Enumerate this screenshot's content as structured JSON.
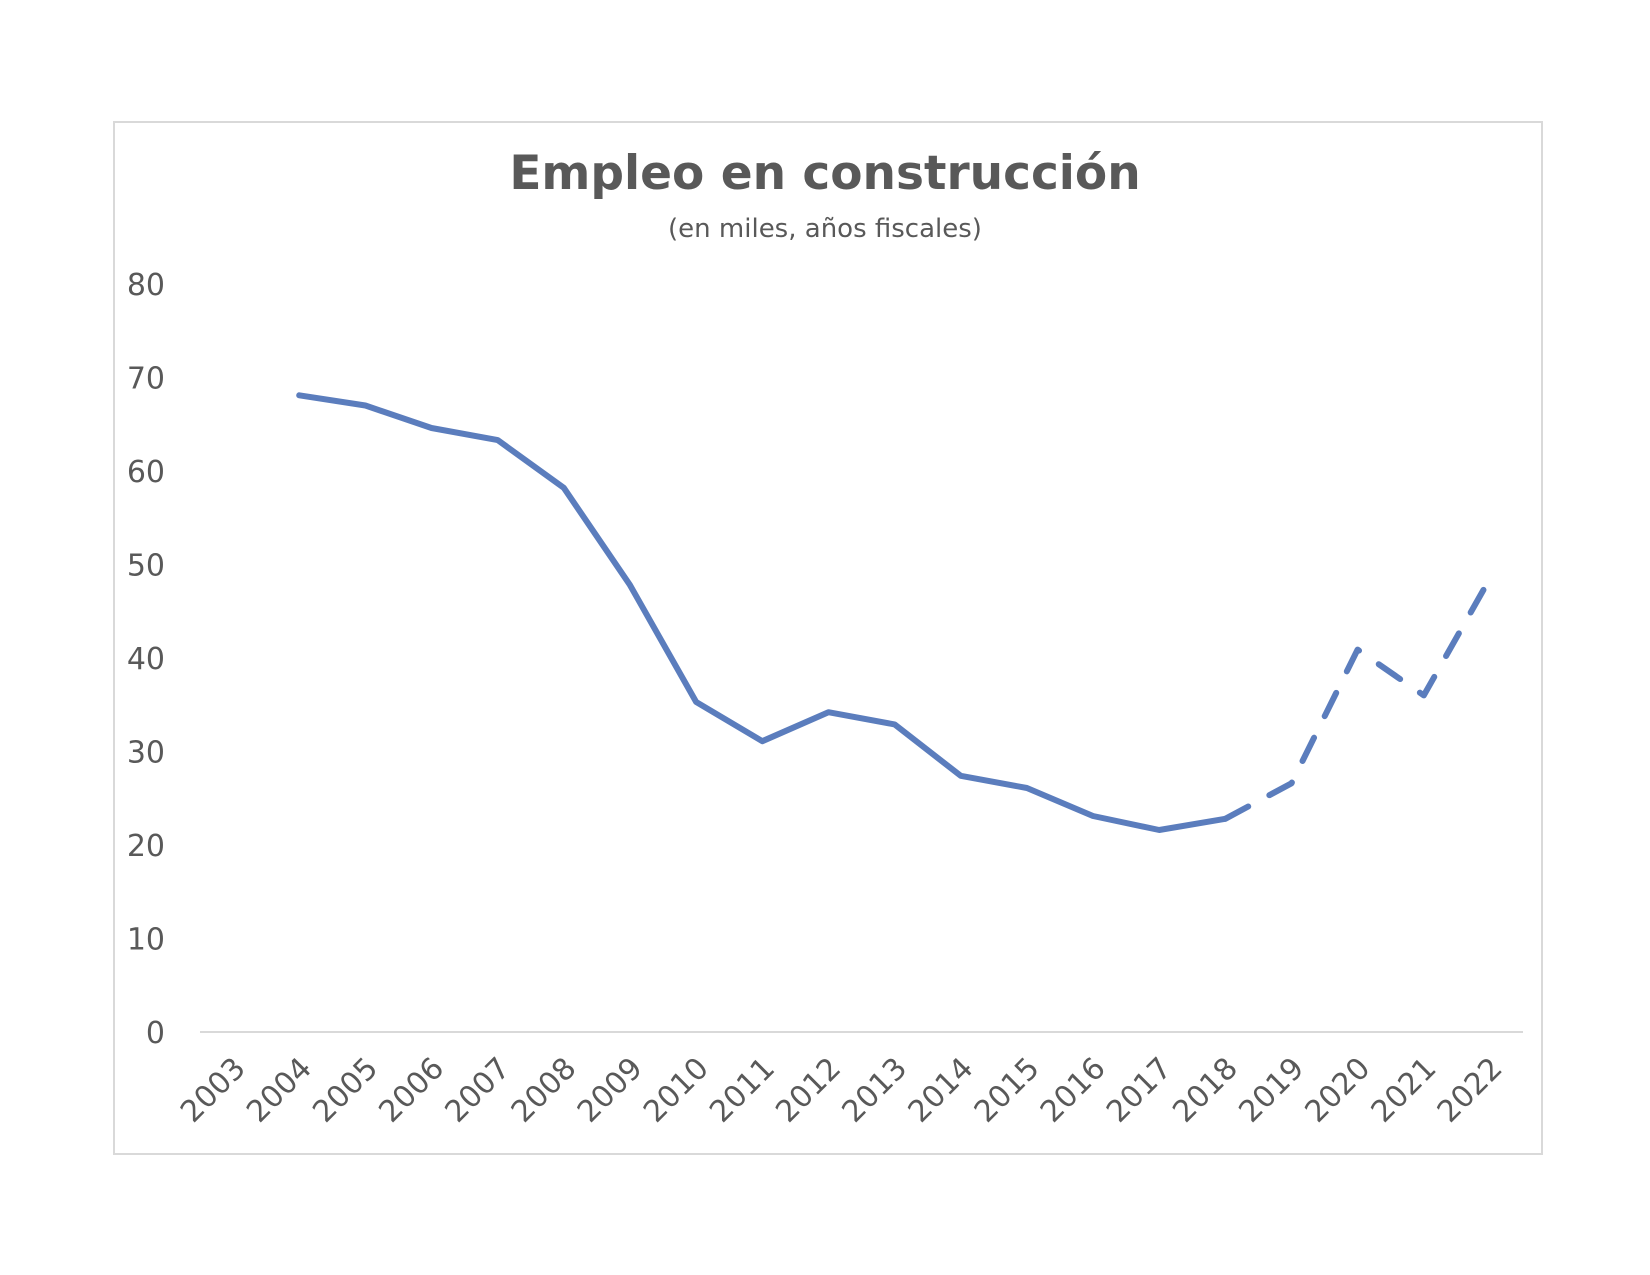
{
  "chart_data": {
    "type": "line",
    "title": "Empleo en construcción",
    "subtitle": "(en miles, años fiscales)",
    "xlabel": "",
    "ylabel": "",
    "ylim": [
      0,
      80
    ],
    "yticks": [
      "0",
      "10",
      "20",
      "30",
      "40",
      "50",
      "60",
      "70",
      "80"
    ],
    "categories": [
      "2003",
      "2004",
      "2005",
      "2006",
      "2007",
      "2008",
      "2009",
      "2010",
      "2011",
      "2012",
      "2013",
      "2014",
      "2015",
      "2016",
      "2017",
      "2018",
      "2019",
      "2020",
      "2021",
      "2022"
    ],
    "series": [
      {
        "name": "",
        "values": [
          null,
          68.1,
          67.0,
          64.6,
          63.3,
          58.2,
          47.8,
          35.3,
          31.1,
          34.2,
          32.9,
          27.4,
          26.1,
          23.1,
          21.6,
          22.8,
          26.6,
          40.9,
          36.0,
          48.5
        ],
        "solid_through": "2018",
        "dashed_from": "2018",
        "color": "#5b7dbd"
      }
    ],
    "grid": false,
    "legend": "none"
  },
  "colors": {
    "line": "#5b7dbd",
    "text": "#595959",
    "axis": "#d9d9d9",
    "border": "#d9d9d9"
  }
}
